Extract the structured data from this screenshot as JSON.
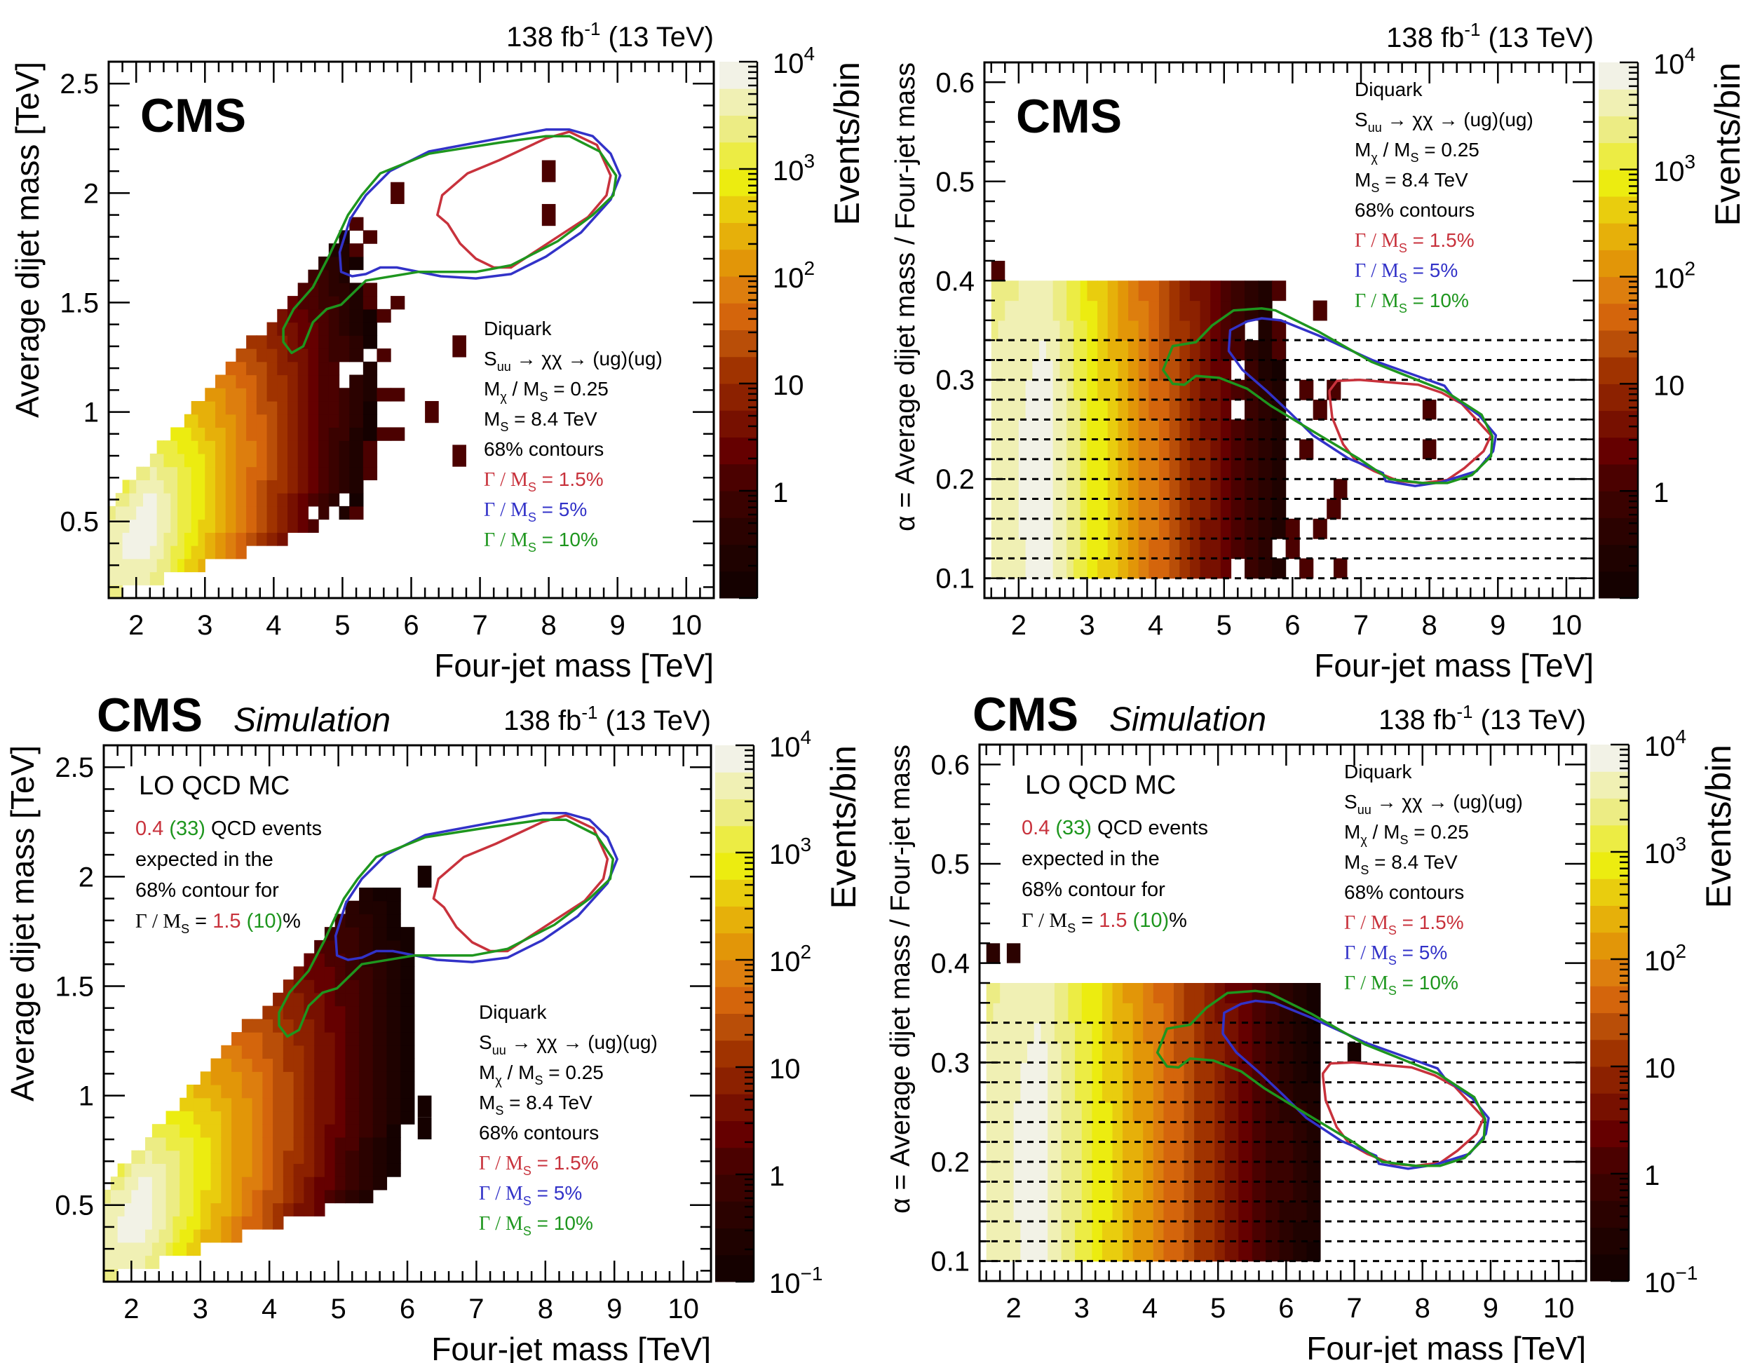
{
  "figure": {
    "lumi_text": "138 fb",
    "lumi_sup": "-1",
    "lumi_energy": " (13 TeV)",
    "cms_label": "CMS",
    "simulation_label": "Simulation",
    "colors": {
      "contour_gamma_1_5": "#c8323c",
      "contour_gamma_5": "#3232c8",
      "contour_gamma_10": "#1e961e"
    }
  },
  "legend": {
    "lines": [
      {
        "text": "Diquark",
        "color": "#000000"
      },
      {
        "text": "S",
        "sub": "uu",
        "rest": " → χχ → (ug)(ug)",
        "color": "#000000"
      },
      {
        "text": "M",
        "sub": "χ",
        "rest": " / M",
        "sub2": "S",
        "rest2": " = 0.25",
        "color": "#000000"
      },
      {
        "text": "M",
        "sub": "S",
        "rest": " = 8.4 TeV",
        "color": "#000000"
      },
      {
        "text": "68% contours",
        "color": "#000000"
      },
      {
        "text": "Γ / M",
        "sub": "S",
        "rest": " = 1.5%",
        "color": "#c8323c"
      },
      {
        "text": "Γ / M",
        "sub": "S",
        "rest": " = 5%",
        "color": "#3232c8"
      },
      {
        "text": "Γ / M",
        "sub": "S",
        "rest": " = 10%",
        "color": "#1e961e"
      }
    ]
  },
  "qcd_info": {
    "title": "LO QCD MC",
    "line1_red": "0.4",
    "line1_green": "(33)",
    "line1_rest": " QCD events",
    "line2": "expected in the",
    "line3": "68% contour for",
    "line4_prefix": "Γ / M",
    "line4_sub": "S",
    "line4_eq": " = ",
    "line4_red": "1.5",
    "line4_green": "(10)",
    "line4_suffix": "%"
  },
  "chart_data": [
    {
      "id": "data-dijet",
      "type": "heatmap",
      "title": "CMS",
      "is_simulation": false,
      "xlabel": "Four-jet mass [TeV]",
      "ylabel": "Average dijet mass [TeV]",
      "zlabel": "Events/bin",
      "xlim": [
        1.6,
        10.4
      ],
      "ylim": [
        0.15,
        2.6
      ],
      "xticks": [
        2,
        3,
        4,
        5,
        6,
        7,
        8,
        9,
        10
      ],
      "yticks": [
        0.5,
        1,
        1.5,
        2,
        2.5
      ],
      "ytick_labels": [
        "0.5",
        "1",
        "1.5",
        "2",
        "2.5"
      ],
      "zlim": [
        0.15,
        10000
      ],
      "zticks": [
        1,
        10,
        100,
        1000,
        10000
      ],
      "ztick_labels": [
        "1",
        "10",
        "10^2",
        "10^3",
        "10^4"
      ],
      "zscale": "log",
      "legend_position": "right-middle",
      "distribution": {
        "kind": "dijet",
        "peak_x": 2.2,
        "max_events": 8000,
        "slope_per_tev": 1.45,
        "alpha_min": 0.08,
        "alpha_max": 0.42,
        "x_cut": 6.0,
        "sparse": true
      },
      "extra_bins": [
        {
          "x": 5.8,
          "y": 2.0,
          "z": 1
        },
        {
          "x": 8.0,
          "y": 2.1,
          "z": 1
        },
        {
          "x": 8.0,
          "y": 1.9,
          "z": 1
        },
        {
          "x": 6.7,
          "y": 1.3,
          "z": 1
        },
        {
          "x": 6.7,
          "y": 0.8,
          "z": 1
        },
        {
          "x": 6.3,
          "y": 1.0,
          "z": 1
        }
      ],
      "contours": [
        {
          "name": "Γ/M_S = 1.5%",
          "color": "#c8323c",
          "points": [
            [
              6.38,
              1.9
            ],
            [
              6.45,
              1.99
            ],
            [
              6.82,
              2.09
            ],
            [
              7.28,
              2.15
            ],
            [
              7.96,
              2.25
            ],
            [
              8.3,
              2.28
            ],
            [
              8.7,
              2.22
            ],
            [
              8.9,
              2.08
            ],
            [
              8.84,
              1.99
            ],
            [
              8.57,
              1.89
            ],
            [
              8.13,
              1.8
            ],
            [
              7.45,
              1.66
            ],
            [
              7.2,
              1.66
            ],
            [
              6.94,
              1.7
            ],
            [
              6.71,
              1.77
            ],
            [
              6.53,
              1.86
            ]
          ]
        },
        {
          "name": "Γ/M_S = 5%",
          "color": "#3232c8",
          "points": [
            [
              4.98,
              1.64
            ],
            [
              5.14,
              1.62
            ],
            [
              5.34,
              1.63
            ],
            [
              5.55,
              1.66
            ],
            [
              5.79,
              1.66
            ],
            [
              6.43,
              1.62
            ],
            [
              6.94,
              1.61
            ],
            [
              7.45,
              1.63
            ],
            [
              7.96,
              1.71
            ],
            [
              8.47,
              1.82
            ],
            [
              8.9,
              1.97
            ],
            [
              9.04,
              2.08
            ],
            [
              8.9,
              2.18
            ],
            [
              8.64,
              2.26
            ],
            [
              8.3,
              2.29
            ],
            [
              7.96,
              2.29
            ],
            [
              7.28,
              2.25
            ],
            [
              6.26,
              2.19
            ],
            [
              5.69,
              2.1
            ],
            [
              5.34,
              1.99
            ],
            [
              5.11,
              1.88
            ],
            [
              4.96,
              1.73
            ]
          ]
        },
        {
          "name": "Γ/M_S = 10%",
          "color": "#1e961e",
          "points": [
            [
              4.26,
              1.27
            ],
            [
              4.14,
              1.32
            ],
            [
              4.14,
              1.38
            ],
            [
              4.29,
              1.47
            ],
            [
              4.57,
              1.57
            ],
            [
              4.8,
              1.71
            ],
            [
              5.08,
              1.9
            ],
            [
              5.28,
              1.99
            ],
            [
              5.55,
              2.09
            ],
            [
              6.26,
              2.18
            ],
            [
              7.28,
              2.23
            ],
            [
              7.96,
              2.26
            ],
            [
              8.3,
              2.26
            ],
            [
              8.74,
              2.19
            ],
            [
              8.98,
              2.08
            ],
            [
              8.94,
              1.99
            ],
            [
              8.64,
              1.9
            ],
            [
              8.13,
              1.78
            ],
            [
              7.45,
              1.67
            ],
            [
              6.94,
              1.64
            ],
            [
              6.1,
              1.64
            ],
            [
              5.34,
              1.6
            ],
            [
              4.98,
              1.49
            ],
            [
              4.77,
              1.47
            ],
            [
              4.57,
              1.41
            ],
            [
              4.43,
              1.3
            ]
          ]
        }
      ]
    },
    {
      "id": "data-alpha",
      "type": "heatmap",
      "title": "CMS",
      "is_simulation": false,
      "xlabel": "Four-jet mass [TeV]",
      "ylabel": "α = Average dijet mass / Four-jet mass",
      "zlabel": "Events/bin",
      "xlim": [
        1.5,
        10.4
      ],
      "ylim": [
        0.08,
        0.62
      ],
      "xticks": [
        2,
        3,
        4,
        5,
        6,
        7,
        8,
        9,
        10
      ],
      "yticks": [
        0.1,
        0.2,
        0.3,
        0.4,
        0.5,
        0.6
      ],
      "ytick_labels": [
        "0.1",
        "0.2",
        "0.3",
        "0.4",
        "0.5",
        "0.6"
      ],
      "alpha_bin_lines": [
        0.1,
        0.12,
        0.14,
        0.16,
        0.18,
        0.2,
        0.22,
        0.24,
        0.26,
        0.28,
        0.3,
        0.32,
        0.34
      ],
      "zlim": [
        0.15,
        10000
      ],
      "zticks": [
        1,
        10,
        100,
        1000,
        10000
      ],
      "ztick_labels": [
        "1",
        "10",
        "10^2",
        "10^3",
        "10^4"
      ],
      "zscale": "log",
      "legend_position": "top-right",
      "distribution": {
        "kind": "alpha",
        "peak_x": 2.4,
        "max_events": 8000,
        "slope_per_tev": 1.35,
        "alpha_min": 0.1,
        "alpha_max": 0.4,
        "x_cut": 6.8,
        "sparse": true
      },
      "extra_bins": [
        {
          "x": 1.7,
          "y": 0.41,
          "z": 1
        },
        {
          "x": 8.0,
          "y": 0.27,
          "z": 1
        },
        {
          "x": 8.0,
          "y": 0.23,
          "z": 1
        },
        {
          "x": 5.8,
          "y": 0.33,
          "z": 1
        },
        {
          "x": 6.7,
          "y": 0.19,
          "z": 1
        },
        {
          "x": 6.7,
          "y": 0.11,
          "z": 1
        }
      ],
      "contours": [
        {
          "name": "Γ/M_S = 1.5%",
          "color": "#c8323c",
          "points": [
            [
              6.54,
              0.289
            ],
            [
              6.65,
              0.299
            ],
            [
              6.98,
              0.3
            ],
            [
              7.84,
              0.295
            ],
            [
              8.18,
              0.287
            ],
            [
              8.47,
              0.276
            ],
            [
              8.9,
              0.244
            ],
            [
              8.79,
              0.228
            ],
            [
              8.51,
              0.211
            ],
            [
              8.26,
              0.199
            ],
            [
              7.9,
              0.196
            ],
            [
              7.55,
              0.198
            ],
            [
              7.19,
              0.208
            ],
            [
              6.93,
              0.218
            ],
            [
              6.74,
              0.235
            ],
            [
              6.58,
              0.262
            ],
            [
              6.54,
              0.286
            ]
          ]
        },
        {
          "name": "Γ/M_S = 5%",
          "color": "#3232c8",
          "points": [
            [
              5.07,
              0.331
            ],
            [
              5.09,
              0.35
            ],
            [
              5.34,
              0.359
            ],
            [
              5.55,
              0.362
            ],
            [
              5.83,
              0.36
            ],
            [
              6.37,
              0.345
            ],
            [
              7.16,
              0.32
            ],
            [
              8.22,
              0.294
            ],
            [
              8.33,
              0.284
            ],
            [
              8.73,
              0.264
            ],
            [
              8.97,
              0.244
            ],
            [
              8.93,
              0.228
            ],
            [
              8.69,
              0.208
            ],
            [
              8.18,
              0.197
            ],
            [
              7.79,
              0.193
            ],
            [
              7.36,
              0.198
            ],
            [
              7.32,
              0.206
            ],
            [
              6.81,
              0.221
            ],
            [
              6.3,
              0.244
            ],
            [
              5.96,
              0.267
            ],
            [
              5.62,
              0.289
            ],
            [
              5.27,
              0.31
            ],
            [
              5.07,
              0.329
            ]
          ]
        },
        {
          "name": "Γ/M_S = 10%",
          "color": "#1e961e",
          "points": [
            [
              4.11,
              0.31
            ],
            [
              4.25,
              0.334
            ],
            [
              4.59,
              0.338
            ],
            [
              4.83,
              0.355
            ],
            [
              5.14,
              0.37
            ],
            [
              5.55,
              0.372
            ],
            [
              5.75,
              0.37
            ],
            [
              6.37,
              0.349
            ],
            [
              7.16,
              0.318
            ],
            [
              8.22,
              0.289
            ],
            [
              8.76,
              0.265
            ],
            [
              8.92,
              0.243
            ],
            [
              8.9,
              0.223
            ],
            [
              8.62,
              0.204
            ],
            [
              8.26,
              0.196
            ],
            [
              7.9,
              0.196
            ],
            [
              7.41,
              0.2
            ],
            [
              6.98,
              0.22
            ],
            [
              6.3,
              0.248
            ],
            [
              5.68,
              0.274
            ],
            [
              5.34,
              0.291
            ],
            [
              4.93,
              0.302
            ],
            [
              4.59,
              0.304
            ],
            [
              4.42,
              0.295
            ],
            [
              4.25,
              0.296
            ]
          ]
        }
      ]
    },
    {
      "id": "mc-dijet",
      "type": "heatmap",
      "title": "CMS",
      "is_simulation": true,
      "xlabel": "Four-jet mass [TeV]",
      "ylabel": "Average dijet mass [TeV]",
      "zlabel": "Events/bin",
      "xlim": [
        1.6,
        10.4
      ],
      "ylim": [
        0.15,
        2.6
      ],
      "xticks": [
        2,
        3,
        4,
        5,
        6,
        7,
        8,
        9,
        10
      ],
      "yticks": [
        0.5,
        1,
        1.5,
        2,
        2.5
      ],
      "ytick_labels": [
        "0.5",
        "1",
        "1.5",
        "2",
        "2.5"
      ],
      "zlim": [
        0.1,
        10000
      ],
      "zticks": [
        0.1,
        1,
        10,
        100,
        1000,
        10000
      ],
      "ztick_labels": [
        "10^-1",
        "1",
        "10",
        "10^2",
        "10^3",
        "10^4"
      ],
      "zscale": "log",
      "legend_position": "right-middle",
      "distribution": {
        "kind": "dijet",
        "peak_x": 2.2,
        "max_events": 8000,
        "slope_per_tev": 1.25,
        "alpha_min": 0.08,
        "alpha_max": 0.42,
        "x_cut": 6.1,
        "sparse": false
      },
      "extra_bins": [
        {
          "x": 6.25,
          "y": 2.0,
          "z": 0.15
        },
        {
          "x": 6.25,
          "y": 0.95,
          "z": 0.15
        },
        {
          "x": 6.25,
          "y": 0.85,
          "z": 0.15
        }
      ],
      "contours": "same-as:data-dijet"
    },
    {
      "id": "mc-alpha",
      "type": "heatmap",
      "title": "CMS",
      "is_simulation": true,
      "xlabel": "Four-jet mass [TeV]",
      "ylabel": "α = Average dijet mass / Four-jet mass",
      "zlabel": "Events/bin",
      "xlim": [
        1.5,
        10.4
      ],
      "ylim": [
        0.08,
        0.62
      ],
      "xticks": [
        2,
        3,
        4,
        5,
        6,
        7,
        8,
        9,
        10
      ],
      "yticks": [
        0.1,
        0.2,
        0.3,
        0.4,
        0.5,
        0.6
      ],
      "ytick_labels": [
        "0.1",
        "0.2",
        "0.3",
        "0.4",
        "0.5",
        "0.6"
      ],
      "alpha_bin_lines": [
        0.1,
        0.12,
        0.14,
        0.16,
        0.18,
        0.2,
        0.22,
        0.24,
        0.26,
        0.28,
        0.3,
        0.32,
        0.34
      ],
      "zlim": [
        0.1,
        10000
      ],
      "zticks": [
        0.1,
        1,
        10,
        100,
        1000,
        10000
      ],
      "ztick_labels": [
        "10^-1",
        "1",
        "10",
        "10^2",
        "10^3",
        "10^4"
      ],
      "zscale": "log",
      "legend_position": "top-right",
      "distribution": {
        "kind": "alpha",
        "peak_x": 2.4,
        "max_events": 8000,
        "slope_per_tev": 1.15,
        "alpha_min": 0.1,
        "alpha_max": 0.38,
        "x_cut": 6.6,
        "sparse": false
      },
      "extra_bins": [
        {
          "x": 1.7,
          "y": 0.41,
          "z": 0.5
        },
        {
          "x": 2.0,
          "y": 0.41,
          "z": 0.5
        },
        {
          "x": 7.0,
          "y": 0.31,
          "z": 0.15
        }
      ],
      "contours": "same-as:data-alpha"
    }
  ]
}
